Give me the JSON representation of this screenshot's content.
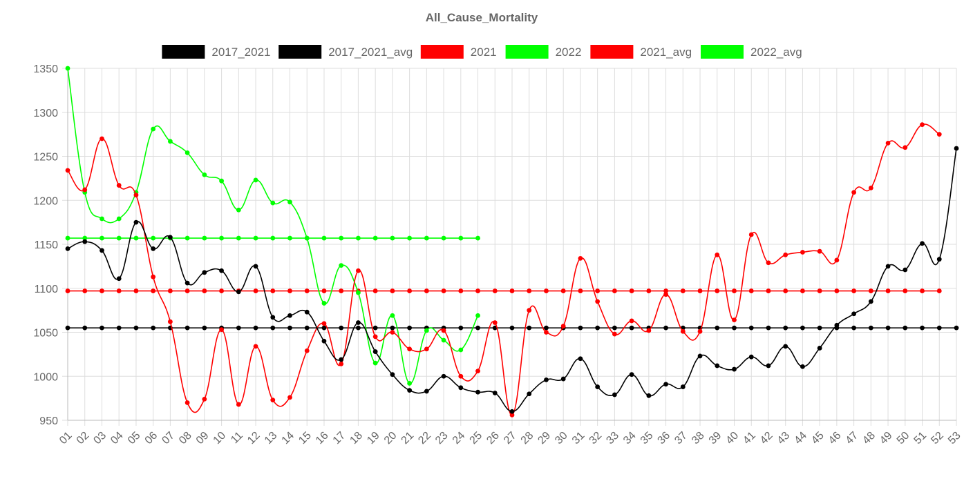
{
  "chart_data": {
    "type": "line",
    "title": "All_Cause_Mortality",
    "xlabel": "",
    "ylabel": "",
    "ylim": [
      950,
      1350
    ],
    "yticks": [
      950,
      1000,
      1050,
      1100,
      1150,
      1200,
      1250,
      1300,
      1350
    ],
    "grid": true,
    "legend_position": "top-center",
    "categories": [
      "01",
      "02",
      "03",
      "04",
      "05",
      "06",
      "07",
      "08",
      "09",
      "10",
      "11",
      "12",
      "13",
      "14",
      "15",
      "16",
      "17",
      "18",
      "19",
      "20",
      "21",
      "22",
      "23",
      "24",
      "25",
      "26",
      "27",
      "28",
      "29",
      "30",
      "31",
      "32",
      "33",
      "34",
      "35",
      "36",
      "37",
      "38",
      "39",
      "40",
      "41",
      "42",
      "43",
      "44",
      "45",
      "46",
      "47",
      "48",
      "49",
      "50",
      "51",
      "52",
      "53"
    ],
    "series": [
      {
        "name": "2017_2021",
        "color": "#000000",
        "values": [
          1145,
          1153,
          1143,
          1111,
          1175,
          1145,
          1158,
          1106,
          1118,
          1120,
          1096,
          1125,
          1067,
          1069,
          1073,
          1040,
          1019,
          1061,
          1028,
          1002,
          984,
          983,
          1000,
          987,
          982,
          981,
          960,
          980,
          996,
          997,
          1020,
          988,
          979,
          1002,
          978,
          991,
          988,
          1023,
          1012,
          1008,
          1022,
          1012,
          1034,
          1011,
          1032,
          1058,
          1071,
          1085,
          1125,
          1121,
          1151,
          1133,
          1259
        ]
      },
      {
        "name": "2017_2021_avg",
        "color": "#000000",
        "values": [
          1055,
          1055,
          1055,
          1055,
          1055,
          1055,
          1055,
          1055,
          1055,
          1055,
          1055,
          1055,
          1055,
          1055,
          1055,
          1055,
          1055,
          1055,
          1055,
          1055,
          1055,
          1055,
          1055,
          1055,
          1055,
          1055,
          1055,
          1055,
          1055,
          1055,
          1055,
          1055,
          1055,
          1055,
          1055,
          1055,
          1055,
          1055,
          1055,
          1055,
          1055,
          1055,
          1055,
          1055,
          1055,
          1055,
          1055,
          1055,
          1055,
          1055,
          1055,
          1055,
          1055
        ]
      },
      {
        "name": "2021",
        "color": "#ff0000",
        "values": [
          1234,
          1212,
          1270,
          1217,
          1206,
          1113,
          1062,
          970,
          974,
          1053,
          968,
          1034,
          973,
          976,
          1029,
          1060,
          1014,
          1120,
          1045,
          1050,
          1031,
          1031,
          1052,
          1000,
          1006,
          1061,
          956,
          1075,
          1050,
          1057,
          1134,
          1085,
          1048,
          1063,
          1052,
          1093,
          1051,
          1051,
          1138,
          1064,
          1161,
          1129,
          1138,
          1141,
          1142,
          1132,
          1209,
          1214,
          1265,
          1260,
          1286,
          1275,
          null
        ]
      },
      {
        "name": "2022",
        "color": "#00ff00",
        "values": [
          1350,
          1209,
          1179,
          1179,
          1209,
          1281,
          1267,
          1254,
          1229,
          1222,
          1189,
          1223,
          1197,
          1198,
          1157,
          1083,
          1126,
          1095,
          1015,
          1069,
          992,
          1052,
          1041,
          1030,
          1069,
          null,
          null,
          null,
          null,
          null,
          null,
          null,
          null,
          null,
          null,
          null,
          null,
          null,
          null,
          null,
          null,
          null,
          null,
          null,
          null,
          null,
          null,
          null,
          null,
          null,
          null,
          null,
          null
        ]
      },
      {
        "name": "2021_avg",
        "color": "#ff0000",
        "values": [
          1097,
          1097,
          1097,
          1097,
          1097,
          1097,
          1097,
          1097,
          1097,
          1097,
          1097,
          1097,
          1097,
          1097,
          1097,
          1097,
          1097,
          1097,
          1097,
          1097,
          1097,
          1097,
          1097,
          1097,
          1097,
          1097,
          1097,
          1097,
          1097,
          1097,
          1097,
          1097,
          1097,
          1097,
          1097,
          1097,
          1097,
          1097,
          1097,
          1097,
          1097,
          1097,
          1097,
          1097,
          1097,
          1097,
          1097,
          1097,
          1097,
          1097,
          1097,
          1097,
          null
        ]
      },
      {
        "name": "2022_avg",
        "color": "#00ff00",
        "values": [
          1157,
          1157,
          1157,
          1157,
          1157,
          1157,
          1157,
          1157,
          1157,
          1157,
          1157,
          1157,
          1157,
          1157,
          1157,
          1157,
          1157,
          1157,
          1157,
          1157,
          1157,
          1157,
          1157,
          1157,
          1157,
          null,
          null,
          null,
          null,
          null,
          null,
          null,
          null,
          null,
          null,
          null,
          null,
          null,
          null,
          null,
          null,
          null,
          null,
          null,
          null,
          null,
          null,
          null,
          null,
          null,
          null,
          null,
          null
        ]
      }
    ]
  }
}
